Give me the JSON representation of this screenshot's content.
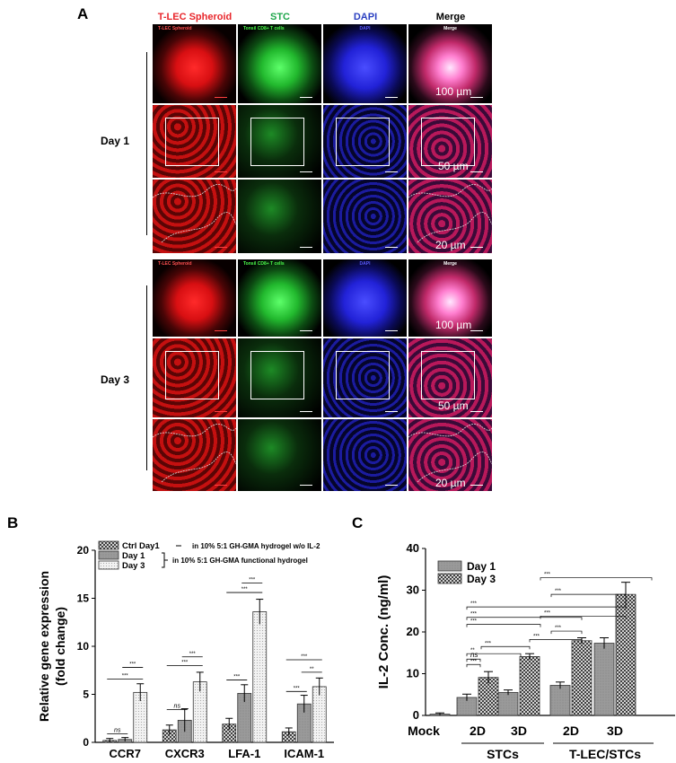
{
  "panel_a": {
    "letter": "A",
    "columns": [
      {
        "header": "T-LEC Spheroid",
        "color": "#e8262b"
      },
      {
        "header": "STC",
        "color": "#1ea64b"
      },
      {
        "header": "DAPI",
        "color": "#2a3fc1"
      },
      {
        "header": "Merge",
        "color": "#000000"
      }
    ],
    "days": [
      "Day 1",
      "Day 3"
    ],
    "tile_labels": [
      "T-LEC Spheroid",
      "Tonsil CD8+ T cells",
      "DAPI",
      "Merge"
    ],
    "scale_labels": [
      "100 µm",
      "50 µm",
      "20 µm"
    ]
  },
  "panel_b": {
    "letter": "B",
    "legend_note_ctrl": "in 10% 5:1 GH-GMA hydrogel w/o IL-2",
    "legend_note_func": "in 10% 5:1 GH-GMA functional hydrogel"
  },
  "panel_c": {
    "letter": "C",
    "group_labels": [
      "STCs",
      "T-LEC/STCs"
    ]
  },
  "chart_data": [
    {
      "type": "bar",
      "panel": "B",
      "ylabel": "Relative gene expression\n(fold change)",
      "ylim": [
        0,
        20
      ],
      "yticks": [
        0,
        5,
        10,
        15,
        20
      ],
      "categories": [
        "CCR7",
        "CXCR3",
        "LFA-1",
        "ICAM-1"
      ],
      "series": [
        {
          "name": "Ctrl Day1",
          "values": [
            0.2,
            1.3,
            1.9,
            1.1
          ],
          "errors": [
            0.2,
            0.5,
            0.6,
            0.4
          ]
        },
        {
          "name": "Day 1",
          "values": [
            0.3,
            2.3,
            5.1,
            4.0
          ],
          "errors": [
            0.2,
            1.2,
            0.9,
            0.9
          ]
        },
        {
          "name": "Day 3",
          "values": [
            5.2,
            6.3,
            13.6,
            5.8
          ],
          "errors": [
            0.9,
            1.0,
            1.3,
            0.9
          ]
        }
      ],
      "legend": "top-left",
      "annotations": [
        "ns",
        "***",
        "***",
        "ns",
        "***",
        "***",
        "***",
        "***",
        "***",
        "***",
        "**",
        "***"
      ]
    },
    {
      "type": "bar",
      "panel": "C",
      "ylabel": "IL-2 Conc. (ng/ml)",
      "ylim": [
        0,
        40
      ],
      "yticks": [
        0,
        10,
        20,
        30,
        40
      ],
      "categories": [
        "Mock",
        "2D",
        "3D",
        "2D",
        "3D"
      ],
      "series": [
        {
          "name": "Day 1",
          "values": [
            0.3,
            4.3,
            5.5,
            7.2,
            17.3
          ],
          "errors": [
            0.3,
            0.8,
            0.6,
            0.8,
            1.3
          ]
        },
        {
          "name": "Day 3",
          "values": [
            null,
            9.1,
            14.1,
            17.9,
            29.0
          ],
          "errors": [
            null,
            1.4,
            0.7,
            0.7,
            2.9
          ]
        }
      ],
      "legend": "top-left",
      "annotations": [
        "**",
        "ns",
        "***",
        "***",
        "***",
        "***",
        "***",
        "***",
        "***",
        "***",
        "***",
        "***"
      ]
    }
  ]
}
